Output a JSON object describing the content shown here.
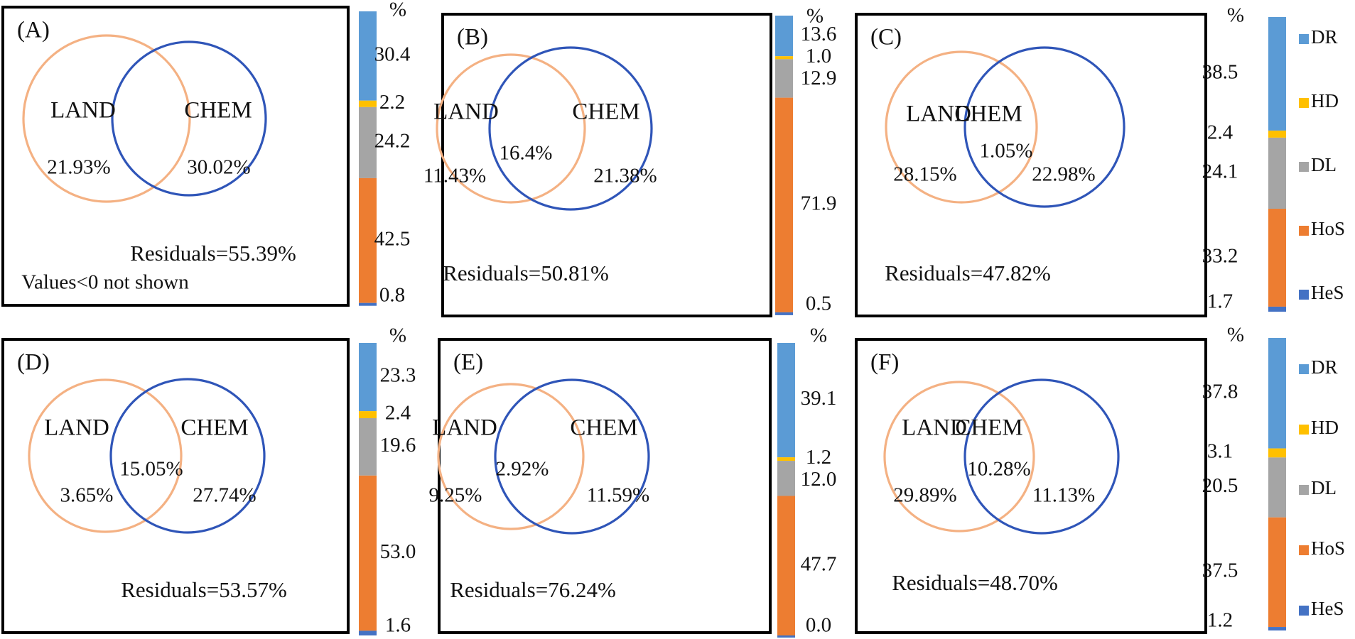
{
  "set_labels": {
    "land": "LAND",
    "chem": "CHEM"
  },
  "percent_symbol": "%",
  "legend": [
    {
      "key": "DR",
      "label": "DR",
      "color": "#5b9bd5"
    },
    {
      "key": "HD",
      "label": "HD",
      "color": "#ffc000"
    },
    {
      "key": "DL",
      "label": "DL",
      "color": "#a5a5a5"
    },
    {
      "key": "HoS",
      "label": "HoS",
      "color": "#ed7d31"
    },
    {
      "key": "HeS",
      "label": "HeS",
      "color": "#4472c4"
    }
  ],
  "panels": [
    {
      "id": "A",
      "panel_label": "(A)",
      "land_only": "21.93%",
      "shared": "",
      "chem_only": "30.02%",
      "residuals": "Residuals=55.39%",
      "note": "Values<0  not shown",
      "bar": [
        {
          "key": "DR",
          "value": 30.4,
          "label": "30.4"
        },
        {
          "key": "HD",
          "value": 2.2,
          "label": "2.2"
        },
        {
          "key": "DL",
          "value": 24.2,
          "label": "24.2"
        },
        {
          "key": "HoS",
          "value": 42.5,
          "label": "42.5"
        },
        {
          "key": "HeS",
          "value": 0.8,
          "label": "0.8"
        }
      ]
    },
    {
      "id": "B",
      "panel_label": "(B)",
      "land_only": "11.43%",
      "shared": "16.4%",
      "chem_only": "21.38%",
      "residuals": "Residuals=50.81%",
      "note": "",
      "bar": [
        {
          "key": "DR",
          "value": 13.6,
          "label": "13.6"
        },
        {
          "key": "HD",
          "value": 1.0,
          "label": "1.0"
        },
        {
          "key": "DL",
          "value": 12.9,
          "label": "12.9"
        },
        {
          "key": "HoS",
          "value": 71.9,
          "label": "71.9"
        },
        {
          "key": "HeS",
          "value": 0.5,
          "label": "0.5"
        }
      ]
    },
    {
      "id": "C",
      "panel_label": "(C)",
      "land_only": "28.15%",
      "shared": "1.05%",
      "chem_only": "22.98%",
      "residuals": "Residuals=47.82%",
      "note": "",
      "bar": [
        {
          "key": "DR",
          "value": 38.5,
          "label": "38.5"
        },
        {
          "key": "HD",
          "value": 2.4,
          "label": "2.4"
        },
        {
          "key": "DL",
          "value": 24.1,
          "label": "24.1"
        },
        {
          "key": "HoS",
          "value": 33.2,
          "label": "33.2"
        },
        {
          "key": "HeS",
          "value": 1.7,
          "label": "1.7"
        }
      ]
    },
    {
      "id": "D",
      "panel_label": "(D)",
      "land_only": "3.65%",
      "shared": "15.05%",
      "chem_only": "27.74%",
      "residuals": "Residuals=53.57%",
      "note": "",
      "bar": [
        {
          "key": "DR",
          "value": 23.3,
          "label": "23.3"
        },
        {
          "key": "HD",
          "value": 2.4,
          "label": "2.4"
        },
        {
          "key": "DL",
          "value": 19.6,
          "label": "19.6"
        },
        {
          "key": "HoS",
          "value": 53.0,
          "label": "53.0"
        },
        {
          "key": "HeS",
          "value": 1.6,
          "label": "1.6"
        }
      ]
    },
    {
      "id": "E",
      "panel_label": "(E)",
      "land_only": "9.25%",
      "shared": "2.92%",
      "chem_only": "11.59%",
      "residuals": "Residuals=76.24%",
      "note": "",
      "bar": [
        {
          "key": "DR",
          "value": 39.1,
          "label": "39.1"
        },
        {
          "key": "HD",
          "value": 1.2,
          "label": "1.2"
        },
        {
          "key": "DL",
          "value": 12.0,
          "label": "12.0"
        },
        {
          "key": "HoS",
          "value": 47.7,
          "label": "47.7"
        },
        {
          "key": "HeS",
          "value": 0.0,
          "label": "0.0"
        }
      ]
    },
    {
      "id": "F",
      "panel_label": "(F)",
      "land_only": "29.89%",
      "shared": "10.28%",
      "chem_only": "11.13%",
      "residuals": "Residuals=48.70%",
      "note": "",
      "bar": [
        {
          "key": "DR",
          "value": 37.8,
          "label": "37.8"
        },
        {
          "key": "HD",
          "value": 3.1,
          "label": "3.1"
        },
        {
          "key": "DL",
          "value": 20.5,
          "label": "20.5"
        },
        {
          "key": "HoS",
          "value": 37.5,
          "label": "37.5"
        },
        {
          "key": "HeS",
          "value": 1.2,
          "label": "1.2"
        }
      ]
    }
  ]
}
